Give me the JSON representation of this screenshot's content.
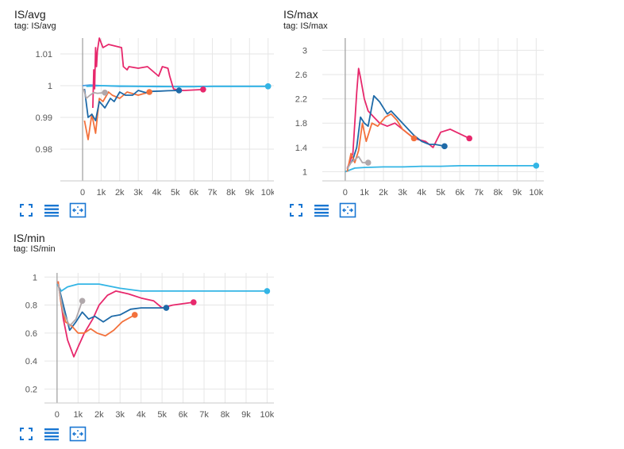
{
  "colors": {
    "accent": "#1976d2",
    "series": {
      "cyan": "#33b5e5",
      "pink": "#e7286c",
      "blue": "#1e6aa8",
      "orange": "#f3713c",
      "gray": "#b0a8ab",
      "lightblue": "#4c9de0"
    }
  },
  "toolbar": {
    "icons": [
      "fullscreen-icon",
      "toggle-log-scale-icon",
      "fit-domain-icon"
    ]
  },
  "cards": [
    {
      "title": "IS/avg",
      "tag": "tag: IS/avg"
    },
    {
      "title": "IS/max",
      "tag": "tag: IS/max"
    },
    {
      "title": "IS/min",
      "tag": "tag: IS/min"
    }
  ],
  "chart_data": [
    {
      "type": "line",
      "title": "IS/avg",
      "subtitle": "tag: IS/avg",
      "xlim": [
        -1200,
        10400
      ],
      "ylim": [
        0.97,
        1.015
      ],
      "xticks": [
        0,
        1000,
        2000,
        3000,
        4000,
        5000,
        6000,
        7000,
        8000,
        9000,
        10000
      ],
      "xtick_labels": [
        "0",
        "1k",
        "2k",
        "3k",
        "4k",
        "5k",
        "6k",
        "7k",
        "8k",
        "9k",
        "10k"
      ],
      "yticks": [
        0.98,
        0.99,
        1.0,
        1.01
      ],
      "ytick_labels": [
        "0.98",
        "0.99",
        "1",
        "1.01"
      ],
      "grid": true,
      "series": [
        {
          "color": "#4c9de0",
          "x": [
            0,
            400,
            1000,
            2000,
            3000,
            4000,
            5000,
            6000,
            7000,
            8000,
            9000,
            10000
          ],
          "y": [
            1.0,
            1.0002,
            1.0,
            0.9998,
            0.9998,
            0.9997,
            0.9997,
            0.9997,
            0.9998,
            0.9998,
            0.9998,
            0.9998
          ]
        },
        {
          "color": "#33b5e5",
          "x": [
            200,
            1000,
            2000,
            3000,
            4000,
            5000,
            6000,
            7000,
            8000,
            9000,
            10000
          ],
          "y": [
            0.9998,
            1.0,
            0.9999,
            0.9998,
            0.9998,
            0.9997,
            0.9997,
            0.9998,
            0.9998,
            0.9998,
            0.9998
          ]
        },
        {
          "color": "#e7286c",
          "x": [
            550,
            600,
            650,
            700,
            750,
            800,
            900,
            1100,
            1400,
            2100,
            2200,
            2400,
            2500,
            3000,
            3500,
            4100,
            4300,
            4600,
            4700,
            4900,
            5200,
            5500,
            6500
          ],
          "y": [
            0.993,
            1.005,
            0.999,
            1.012,
            1.006,
            1.011,
            1.015,
            1.012,
            1.013,
            1.012,
            1.006,
            1.005,
            1.006,
            1.0055,
            1.006,
            1.003,
            1.006,
            1.0055,
            1.003,
            0.999,
            0.9985,
            0.9985,
            0.9988
          ]
        },
        {
          "color": "#f3713c",
          "x": [
            100,
            300,
            500,
            700,
            900,
            1100,
            1400,
            1600,
            2000,
            2400,
            3000,
            3600
          ],
          "y": [
            0.989,
            0.983,
            0.991,
            0.985,
            0.996,
            0.995,
            0.998,
            0.997,
            0.996,
            0.998,
            0.997,
            0.998
          ]
        },
        {
          "color": "#1e6aa8",
          "x": [
            100,
            300,
            500,
            700,
            900,
            1200,
            1500,
            1700,
            2000,
            2300,
            2700,
            3000,
            3400,
            3700,
            4200,
            4600,
            5200
          ],
          "y": [
            0.999,
            0.99,
            0.991,
            0.989,
            0.995,
            0.993,
            0.996,
            0.995,
            0.998,
            0.997,
            0.997,
            0.9985,
            0.9978,
            0.9982,
            0.9983,
            0.9984,
            0.9985
          ]
        },
        {
          "color": "#b0a8ab",
          "x": [
            50,
            200,
            400,
            600,
            800,
            1000,
            1200
          ],
          "y": [
            0.999,
            0.996,
            0.997,
            0.9978,
            0.9976,
            0.9977,
            0.9978
          ]
        }
      ]
    },
    {
      "type": "line",
      "title": "IS/max",
      "subtitle": "tag: IS/max",
      "xlim": [
        -1200,
        10400
      ],
      "ylim": [
        0.85,
        3.2
      ],
      "xticks": [
        0,
        1000,
        2000,
        3000,
        4000,
        5000,
        6000,
        7000,
        8000,
        9000,
        10000
      ],
      "xtick_labels": [
        "0",
        "1k",
        "2k",
        "3k",
        "4k",
        "5k",
        "6k",
        "7k",
        "8k",
        "9k",
        "10k"
      ],
      "yticks": [
        1,
        1.4,
        1.8,
        2.2,
        2.6,
        3
      ],
      "ytick_labels": [
        "1",
        "1.4",
        "1.8",
        "2.2",
        "2.6",
        "3"
      ],
      "grid": true,
      "series": [
        {
          "color": "#33b5e5",
          "x": [
            0,
            500,
            1000,
            2000,
            3000,
            4000,
            5000,
            6000,
            7000,
            8000,
            9000,
            10000
          ],
          "y": [
            1.0,
            1.06,
            1.07,
            1.08,
            1.08,
            1.09,
            1.09,
            1.1,
            1.1,
            1.1,
            1.1,
            1.1
          ]
        },
        {
          "color": "#e7286c",
          "x": [
            100,
            400,
            600,
            700,
            800,
            1000,
            1200,
            1500,
            1800,
            2200,
            2600,
            3000,
            3600,
            4200,
            4600,
            5000,
            5500,
            6500
          ],
          "y": [
            1.05,
            1.3,
            2.3,
            2.7,
            2.55,
            2.2,
            2.0,
            1.9,
            1.8,
            1.75,
            1.8,
            1.7,
            1.55,
            1.5,
            1.4,
            1.65,
            1.7,
            1.55
          ]
        },
        {
          "color": "#1e6aa8",
          "x": [
            100,
            400,
            600,
            800,
            1000,
            1200,
            1500,
            1800,
            2200,
            2400,
            3000,
            3600,
            4000,
            4400,
            4700,
            5200
          ],
          "y": [
            1.05,
            1.2,
            1.4,
            1.9,
            1.8,
            1.75,
            2.25,
            2.15,
            1.95,
            2.0,
            1.8,
            1.6,
            1.5,
            1.45,
            1.45,
            1.42
          ]
        },
        {
          "color": "#f3713c",
          "x": [
            100,
            300,
            500,
            700,
            900,
            1100,
            1400,
            1700,
            2100,
            2400,
            2700,
            3000,
            3600
          ],
          "y": [
            1.0,
            1.3,
            1.15,
            1.35,
            1.8,
            1.5,
            1.8,
            1.75,
            1.9,
            1.95,
            1.85,
            1.7,
            1.55
          ]
        },
        {
          "color": "#b0a8ab",
          "x": [
            100,
            300,
            500,
            700,
            900,
            1200
          ],
          "y": [
            1.05,
            1.15,
            1.2,
            1.25,
            1.15,
            1.15
          ]
        }
      ]
    },
    {
      "type": "line",
      "title": "IS/min",
      "subtitle": "tag: IS/min",
      "xlim": [
        -600,
        10400
      ],
      "ylim": [
        0.1,
        1.03
      ],
      "xticks": [
        0,
        1000,
        2000,
        3000,
        4000,
        5000,
        6000,
        7000,
        8000,
        9000,
        10000
      ],
      "xtick_labels": [
        "0",
        "1k",
        "2k",
        "3k",
        "4k",
        "5k",
        "6k",
        "7k",
        "8k",
        "9k",
        "10k"
      ],
      "yticks": [
        0.2,
        0.4,
        0.6,
        0.8,
        1
      ],
      "ytick_labels": [
        "0.2",
        "0.4",
        "0.6",
        "0.8",
        "1"
      ],
      "grid": true,
      "series": [
        {
          "color": "#33b5e5",
          "x": [
            0,
            200,
            500,
            1000,
            2000,
            3000,
            4000,
            5000,
            6000,
            7000,
            8000,
            9000,
            10000
          ],
          "y": [
            0.95,
            0.9,
            0.93,
            0.95,
            0.95,
            0.92,
            0.9,
            0.9,
            0.9,
            0.9,
            0.9,
            0.9,
            0.9
          ]
        },
        {
          "color": "#e7286c",
          "x": [
            50,
            300,
            500,
            800,
            1000,
            1300,
            1700,
            2000,
            2400,
            2800,
            3400,
            4000,
            4600,
            5000,
            5500,
            6500
          ],
          "y": [
            0.97,
            0.7,
            0.55,
            0.43,
            0.5,
            0.6,
            0.7,
            0.8,
            0.87,
            0.9,
            0.88,
            0.85,
            0.83,
            0.78,
            0.8,
            0.82
          ]
        },
        {
          "color": "#1e6aa8",
          "x": [
            50,
            300,
            600,
            900,
            1200,
            1500,
            1800,
            2200,
            2600,
            3000,
            3500,
            4000,
            4500,
            5200
          ],
          "y": [
            0.95,
            0.8,
            0.62,
            0.68,
            0.75,
            0.7,
            0.72,
            0.68,
            0.72,
            0.73,
            0.77,
            0.78,
            0.78,
            0.78
          ]
        },
        {
          "color": "#f3713c",
          "x": [
            50,
            200,
            400,
            700,
            1000,
            1300,
            1600,
            1900,
            2300,
            2700,
            3100,
            3700
          ],
          "y": [
            0.97,
            0.8,
            0.68,
            0.65,
            0.6,
            0.6,
            0.63,
            0.6,
            0.58,
            0.62,
            0.68,
            0.73
          ]
        },
        {
          "color": "#b0a8ab",
          "x": [
            50,
            300,
            600,
            900,
            1200
          ],
          "y": [
            0.95,
            0.75,
            0.65,
            0.7,
            0.83
          ]
        }
      ]
    }
  ]
}
